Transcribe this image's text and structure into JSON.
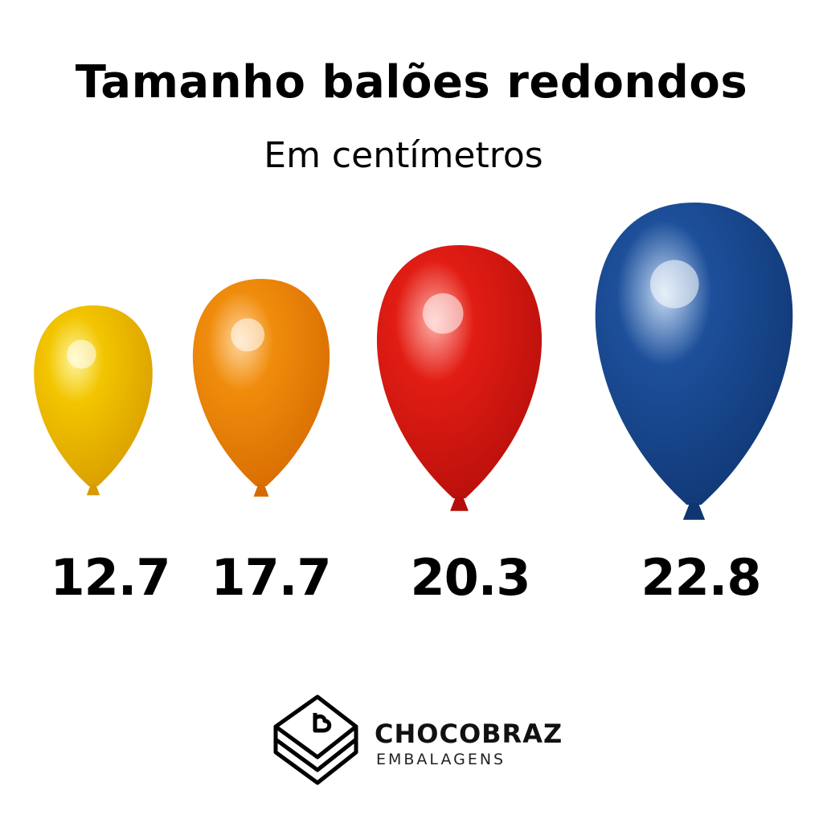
{
  "title": "Tamanho balões redondos",
  "subtitle": "Em centímetros",
  "balloons": [
    {
      "size": "12.7",
      "color": "#f2c500",
      "highlight": "#fff6a0",
      "shade": "#d79a00"
    },
    {
      "size": "17.7",
      "color": "#f08c0c",
      "highlight": "#ffd7a0",
      "shade": "#d56a00"
    },
    {
      "size": "20.3",
      "color": "#e11d14",
      "highlight": "#ffb0a8",
      "shade": "#b50e0a"
    },
    {
      "size": "22.8",
      "color": "#1d4f9a",
      "highlight": "#c6dcf5",
      "shade": "#0f3672"
    }
  ],
  "logo": {
    "brand": "CHOCOBRAZ",
    "tagline": "EMBALAGENS",
    "icon": "stacked-box-heart-icon"
  }
}
